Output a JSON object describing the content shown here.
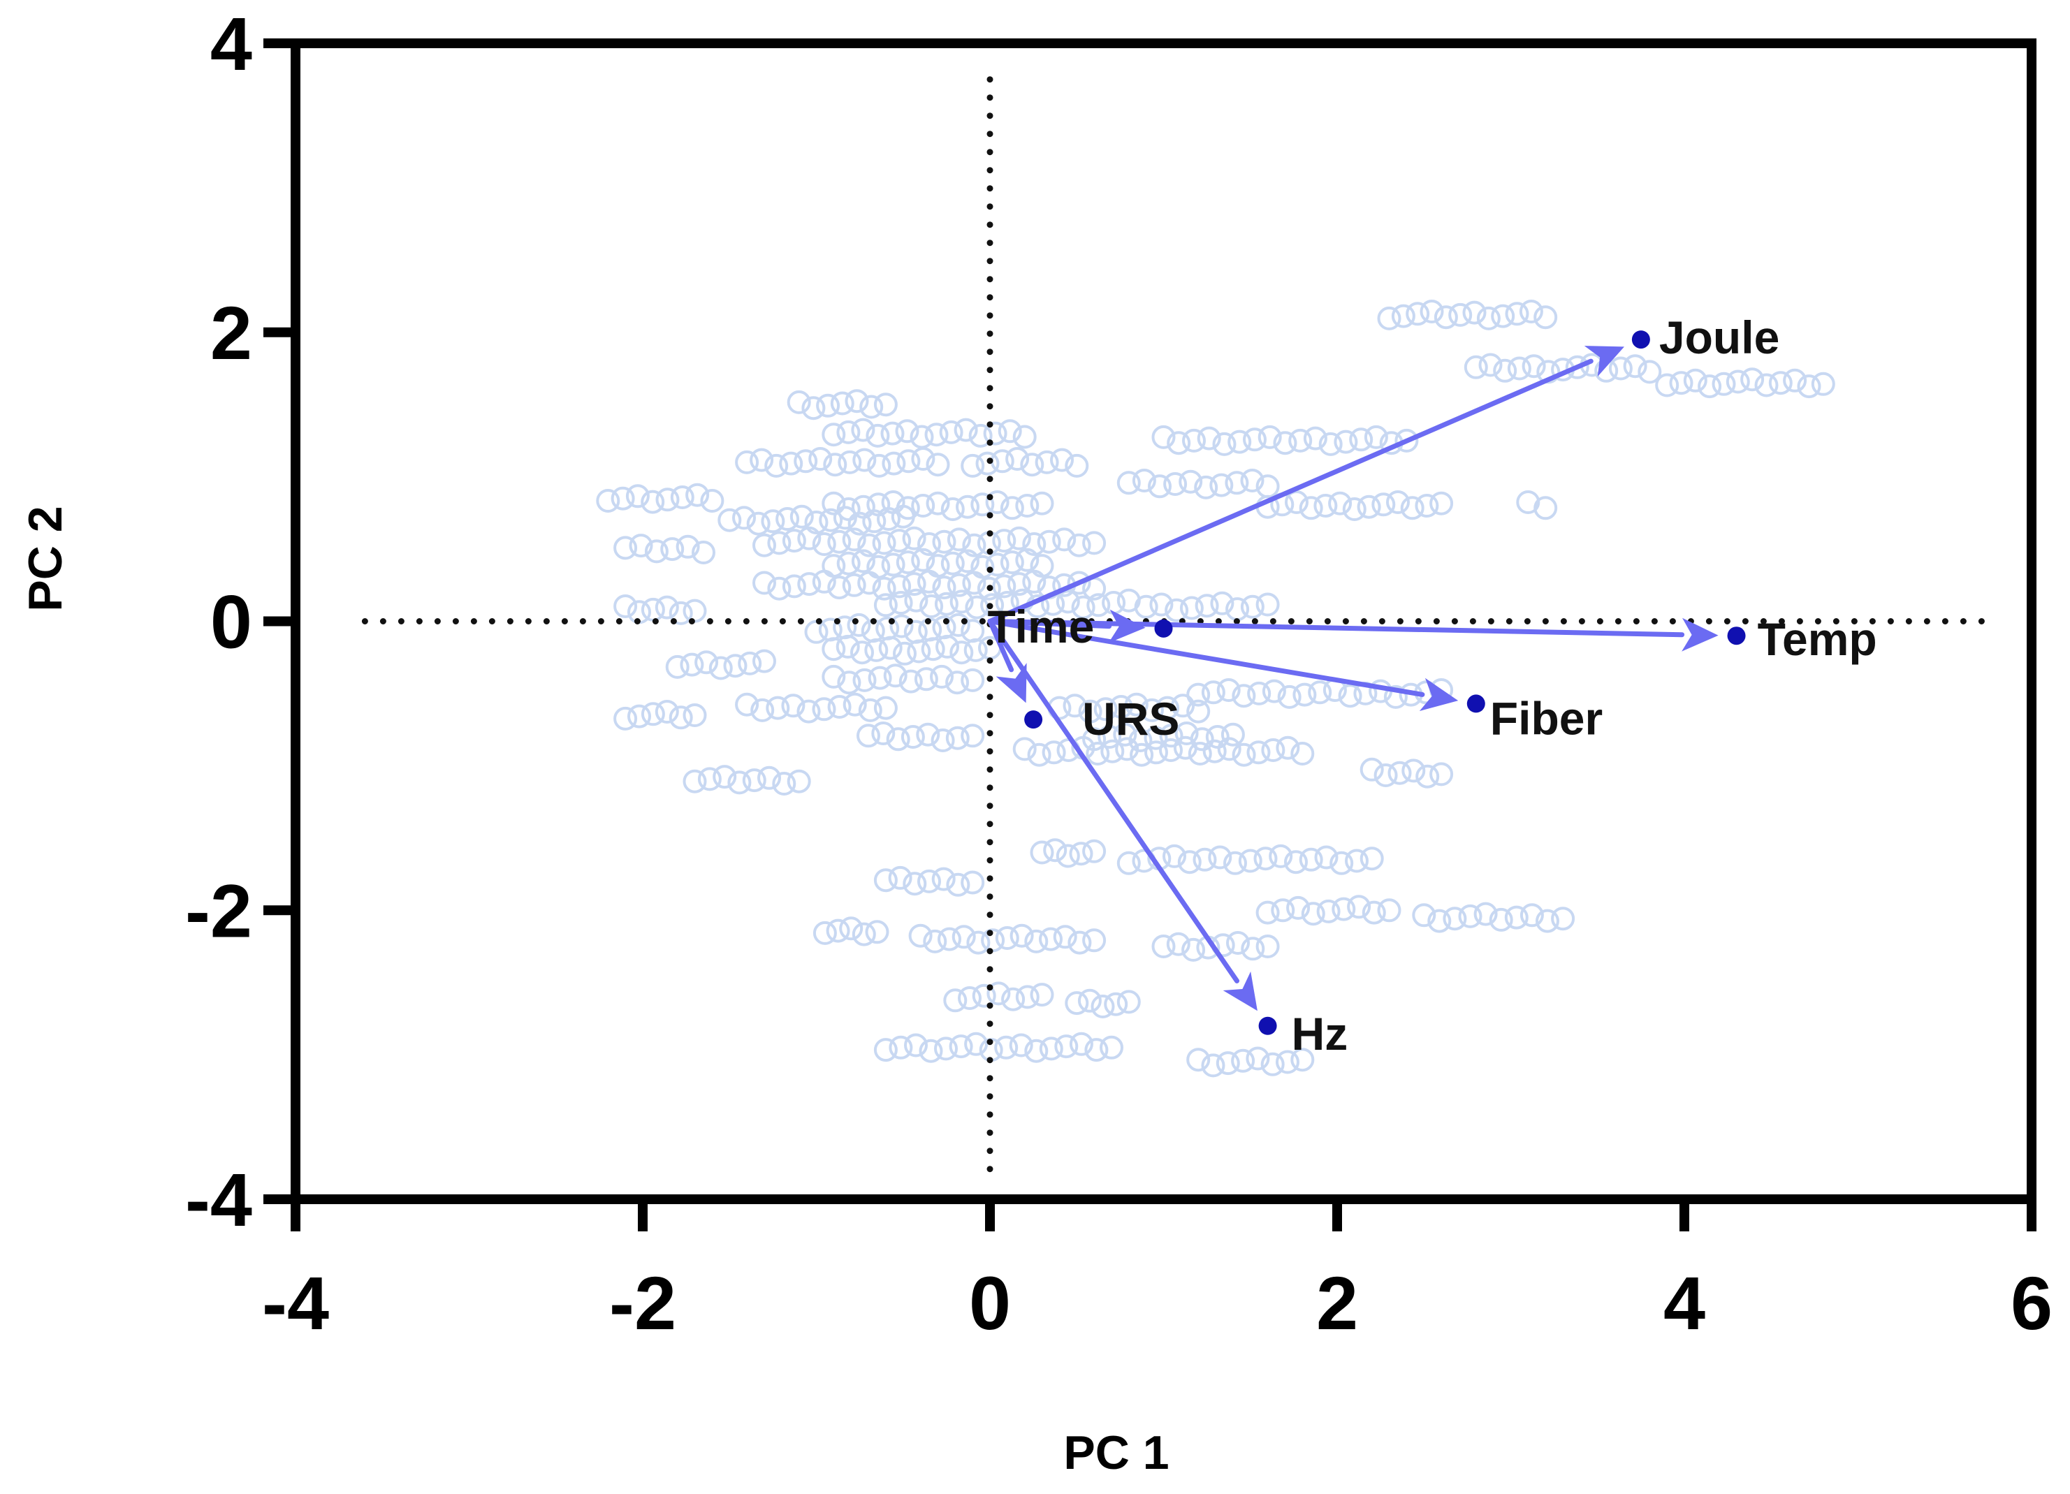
{
  "chart_data": {
    "type": "scatter",
    "subtype": "pca-biplot",
    "title": "",
    "xlabel": "PC 1",
    "ylabel": "PC 2",
    "xlim": [
      -4,
      6
    ],
    "ylim": [
      -4,
      4
    ],
    "xticks": [
      -4,
      -2,
      0,
      2,
      4,
      6
    ],
    "yticks": [
      -4,
      -2,
      0,
      2,
      4
    ],
    "grid": false,
    "reference_lines": [
      "x = 0",
      "y = 0"
    ],
    "colors": {
      "scores": "#c8d8f2",
      "arrows": "#6b6bf2",
      "endpoints": "#1010b0",
      "axes": "#000000"
    },
    "loadings": [
      {
        "name": "Joule",
        "x": 3.75,
        "y": 1.95
      },
      {
        "name": "Temp",
        "x": 4.3,
        "y": -0.1
      },
      {
        "name": "Fiber",
        "x": 2.8,
        "y": -0.57
      },
      {
        "name": "Time",
        "x": 1.0,
        "y": -0.05
      },
      {
        "name": "URS",
        "x": 0.25,
        "y": -0.68
      },
      {
        "name": "Hz",
        "x": 1.6,
        "y": -2.8
      }
    ],
    "score_rows": [
      {
        "y": 2.12,
        "x": [
          2.3,
          3.2
        ]
      },
      {
        "y": 1.75,
        "x": [
          2.8,
          3.8
        ]
      },
      {
        "y": 1.65,
        "x": [
          3.9,
          4.8
        ]
      },
      {
        "y": 1.5,
        "x": [
          -1.1,
          -0.6
        ]
      },
      {
        "y": 1.3,
        "x": [
          -0.9,
          0.2
        ]
      },
      {
        "y": 1.25,
        "x": [
          1.0,
          2.4
        ]
      },
      {
        "y": 1.1,
        "x": [
          -1.4,
          -0.3
        ]
      },
      {
        "y": 1.1,
        "x": [
          -0.1,
          0.5
        ]
      },
      {
        "y": 0.95,
        "x": [
          0.8,
          1.6
        ]
      },
      {
        "y": 0.85,
        "x": [
          -2.2,
          -1.6
        ]
      },
      {
        "y": 0.8,
        "x": [
          -0.9,
          0.3
        ]
      },
      {
        "y": 0.8,
        "x": [
          1.6,
          2.6
        ]
      },
      {
        "y": 0.8,
        "x": [
          3.1,
          3.2
        ]
      },
      {
        "y": 0.7,
        "x": [
          -1.5,
          -0.5
        ]
      },
      {
        "y": 0.55,
        "x": [
          -1.3,
          0.6
        ]
      },
      {
        "y": 0.5,
        "x": [
          -2.1,
          -1.65
        ]
      },
      {
        "y": 0.4,
        "x": [
          -0.9,
          0.3
        ]
      },
      {
        "y": 0.25,
        "x": [
          -1.3,
          0.6
        ]
      },
      {
        "y": 0.12,
        "x": [
          -0.6,
          0.8
        ]
      },
      {
        "y": 0.08,
        "x": [
          -2.1,
          -1.7
        ]
      },
      {
        "y": 0.1,
        "x": [
          0.9,
          1.6
        ]
      },
      {
        "y": -0.05,
        "x": [
          -1.0,
          -0.1
        ]
      },
      {
        "y": -0.2,
        "x": [
          -0.9,
          0.0
        ]
      },
      {
        "y": -0.3,
        "x": [
          -1.8,
          -1.3
        ]
      },
      {
        "y": -0.4,
        "x": [
          -0.9,
          -0.1
        ]
      },
      {
        "y": -0.5,
        "x": [
          1.2,
          2.6
        ]
      },
      {
        "y": -0.6,
        "x": [
          -1.4,
          -0.6
        ]
      },
      {
        "y": -0.6,
        "x": [
          0.4,
          1.2
        ]
      },
      {
        "y": -0.65,
        "x": [
          -2.1,
          -1.7
        ]
      },
      {
        "y": -0.8,
        "x": [
          -0.7,
          -0.1
        ]
      },
      {
        "y": -0.8,
        "x": [
          0.6,
          1.4
        ]
      },
      {
        "y": -0.9,
        "x": [
          0.2,
          1.8
        ]
      },
      {
        "y": -1.1,
        "x": [
          -1.7,
          -1.1
        ]
      },
      {
        "y": -1.05,
        "x": [
          2.2,
          2.6
        ]
      },
      {
        "y": -1.6,
        "x": [
          0.3,
          0.6
        ]
      },
      {
        "y": -1.65,
        "x": [
          0.8,
          2.2
        ]
      },
      {
        "y": -1.8,
        "x": [
          -0.6,
          -0.1
        ]
      },
      {
        "y": -2.0,
        "x": [
          1.6,
          2.3
        ]
      },
      {
        "y": -2.05,
        "x": [
          2.5,
          3.3
        ]
      },
      {
        "y": -2.15,
        "x": [
          -0.95,
          -0.65
        ]
      },
      {
        "y": -2.2,
        "x": [
          -0.4,
          0.6
        ]
      },
      {
        "y": -2.25,
        "x": [
          1.0,
          1.6
        ]
      },
      {
        "y": -2.6,
        "x": [
          -0.2,
          0.3
        ]
      },
      {
        "y": -2.65,
        "x": [
          0.5,
          0.8
        ]
      },
      {
        "y": -2.95,
        "x": [
          -0.6,
          0.7
        ]
      },
      {
        "y": -3.05,
        "x": [
          1.2,
          1.8
        ]
      }
    ]
  }
}
